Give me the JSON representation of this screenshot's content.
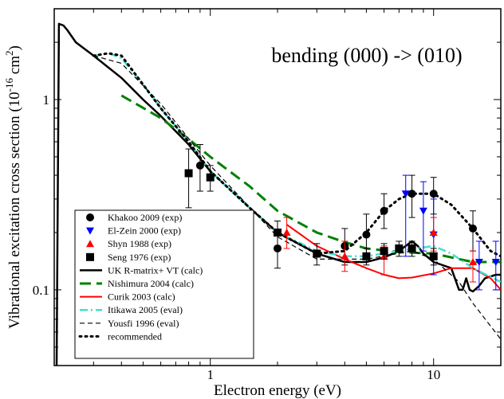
{
  "chart_data": {
    "type": "scatter",
    "title": "bending (000) -> (010)",
    "xlabel": "Electron energy (eV)",
    "ylabel": "Vibrational excitation cross section (10",
    "ylabel_exp": "-16",
    "ylabel_tail": " cm",
    "ylabel_sq": "2",
    "ylabel_end": ")",
    "xscale": "log",
    "yscale": "log",
    "xlim": [
      0.2,
      20
    ],
    "ylim": [
      0.04,
      3
    ],
    "x_ticks": [
      {
        "value": 1,
        "label": "1"
      },
      {
        "value": 10,
        "label": "10"
      }
    ],
    "y_ticks": [
      {
        "value": 0.1,
        "label": "0.1"
      },
      {
        "value": 1,
        "label": "1"
      }
    ],
    "legend_position": "bottom-left",
    "series": [
      {
        "name": "Khakoo 2009 (exp)",
        "kind": "points",
        "marker": "circle",
        "color": "#000000",
        "points": [
          [
            0.9,
            0.45,
            0.58,
            0.33
          ],
          [
            2.0,
            0.165,
            0.2,
            0.13
          ],
          [
            4.0,
            0.17,
            0.21,
            0.135
          ],
          [
            5.0,
            0.195,
            0.25,
            0.15
          ],
          [
            6.0,
            0.26,
            0.32,
            0.21
          ],
          [
            8.0,
            0.32,
            0.4,
            0.24
          ],
          [
            10.0,
            0.32,
            0.39,
            0.25
          ],
          [
            15.0,
            0.21,
            0.26,
            0.16
          ]
        ]
      },
      {
        "name": "El-Zein 2000 (exp)",
        "kind": "points",
        "marker": "triangle-down",
        "color": "#0000ff",
        "points": [
          [
            7.5,
            0.32,
            0.4,
            0.15
          ],
          [
            9.0,
            0.26,
            0.37,
            0.16
          ],
          [
            10.0,
            0.195,
            0.3,
            0.12
          ],
          [
            16.0,
            0.14,
            0.18,
            0.1
          ],
          [
            19.0,
            0.14,
            0.18,
            0.1
          ]
        ]
      },
      {
        "name": "Shyn 1988 (exp)",
        "kind": "points",
        "marker": "triangle-up",
        "color": "#ff0000",
        "points": [
          [
            2.2,
            0.2,
            0.24,
            0.165
          ],
          [
            4.0,
            0.15,
            0.18,
            0.125
          ],
          [
            6.0,
            0.15,
            0.17,
            0.12
          ],
          [
            10.0,
            0.2,
            0.24,
            0.16
          ],
          [
            15.0,
            0.14,
            0.16,
            0.11
          ]
        ]
      },
      {
        "name": "Seng 1976 (exp)",
        "kind": "points",
        "marker": "square",
        "color": "#000000",
        "points": [
          [
            0.8,
            0.41,
            0.55,
            0.27
          ],
          [
            1.0,
            0.39,
            0.45,
            0.33
          ],
          [
            2.0,
            0.2,
            0.23,
            0.17
          ],
          [
            3.0,
            0.155,
            0.175,
            0.135
          ],
          [
            5.0,
            0.15,
            0.165,
            0.135
          ],
          [
            6.0,
            0.16,
            0.175,
            0.145
          ],
          [
            7.0,
            0.165,
            0.18,
            0.15
          ],
          [
            8.0,
            0.165,
            0.18,
            0.15
          ],
          [
            10.0,
            0.15,
            0.165,
            0.135
          ]
        ]
      },
      {
        "name": "UK R-matrix+ VT (calc)",
        "kind": "line",
        "style": "solid",
        "color": "#000000",
        "width": 2.5,
        "points": [
          [
            0.205,
            0.04
          ],
          [
            0.21,
            2.5
          ],
          [
            0.22,
            2.45
          ],
          [
            0.23,
            2.3
          ],
          [
            0.25,
            2.0
          ],
          [
            0.3,
            1.7
          ],
          [
            0.4,
            1.3
          ],
          [
            0.5,
            1.0
          ],
          [
            0.6,
            0.82
          ],
          [
            0.8,
            0.58
          ],
          [
            1.0,
            0.42
          ],
          [
            1.5,
            0.27
          ],
          [
            2.0,
            0.2
          ],
          [
            3.0,
            0.155
          ],
          [
            4.0,
            0.14
          ],
          [
            5.0,
            0.14
          ],
          [
            6.0,
            0.148
          ],
          [
            7.0,
            0.16
          ],
          [
            8.0,
            0.18
          ],
          [
            8.5,
            0.17
          ],
          [
            9.0,
            0.155
          ],
          [
            10.0,
            0.14
          ],
          [
            12.0,
            0.13
          ],
          [
            13.0,
            0.1
          ],
          [
            13.5,
            0.1
          ],
          [
            14.0,
            0.115
          ],
          [
            14.5,
            0.1
          ],
          [
            15.0,
            0.098
          ],
          [
            16.0,
            0.105
          ],
          [
            17.0,
            0.115
          ],
          [
            19.0,
            0.12
          ],
          [
            20.0,
            0.12
          ]
        ]
      },
      {
        "name": "Nishimura 2004 (calc)",
        "kind": "line",
        "style": "longdash",
        "color": "#008000",
        "width": 3,
        "points": [
          [
            0.4,
            1.05
          ],
          [
            0.6,
            0.8
          ],
          [
            0.8,
            0.62
          ],
          [
            1.0,
            0.5
          ],
          [
            1.5,
            0.35
          ],
          [
            2.0,
            0.26
          ],
          [
            3.0,
            0.2
          ],
          [
            4.0,
            0.178
          ],
          [
            5.0,
            0.165
          ],
          [
            7.0,
            0.158
          ],
          [
            10.0,
            0.155
          ],
          [
            15.0,
            0.14
          ],
          [
            20.0,
            0.14
          ]
        ]
      },
      {
        "name": "Curik 2003 (calc)",
        "kind": "line",
        "style": "solid",
        "color": "#ff0000",
        "width": 2,
        "points": [
          [
            2.2,
            0.22
          ],
          [
            3.0,
            0.17
          ],
          [
            4.0,
            0.145
          ],
          [
            5.0,
            0.13
          ],
          [
            6.0,
            0.12
          ],
          [
            7.0,
            0.115
          ],
          [
            8.0,
            0.116
          ],
          [
            10.0,
            0.122
          ],
          [
            12.0,
            0.13
          ],
          [
            15.0,
            0.13
          ],
          [
            18.0,
            0.115
          ],
          [
            20.0,
            0.1
          ]
        ]
      },
      {
        "name": "Itikawa 2005 (eval)",
        "kind": "line",
        "style": "dashdot",
        "color": "#40e0d0",
        "width": 2.5,
        "points": [
          [
            0.3,
            1.7
          ],
          [
            0.35,
            1.75
          ],
          [
            0.4,
            1.65
          ],
          [
            0.5,
            1.2
          ],
          [
            0.6,
            0.9
          ],
          [
            0.8,
            0.6
          ],
          [
            1.0,
            0.42
          ],
          [
            1.5,
            0.27
          ],
          [
            2.0,
            0.2
          ],
          [
            3.0,
            0.16
          ],
          [
            4.0,
            0.15
          ],
          [
            5.0,
            0.15
          ],
          [
            7.0,
            0.16
          ],
          [
            10.0,
            0.17
          ],
          [
            12.0,
            0.155
          ],
          [
            15.0,
            0.13
          ],
          [
            20.0,
            0.11
          ]
        ]
      },
      {
        "name": "Yousfi 1996 (eval)",
        "kind": "line",
        "style": "dash",
        "color": "#000000",
        "width": 1.2,
        "points": [
          [
            0.3,
            1.7
          ],
          [
            0.4,
            1.55
          ],
          [
            0.6,
            0.95
          ],
          [
            1.0,
            0.45
          ],
          [
            2.0,
            0.19
          ],
          [
            3.0,
            0.145
          ],
          [
            5.0,
            0.145
          ],
          [
            8.0,
            0.16
          ],
          [
            10.0,
            0.145
          ],
          [
            13.0,
            0.11
          ],
          [
            15.0,
            0.085
          ],
          [
            20.0,
            0.055
          ]
        ]
      },
      {
        "name": "recommended",
        "kind": "line",
        "style": "dot",
        "color": "#000000",
        "width": 3,
        "points": [
          [
            0.3,
            1.7
          ],
          [
            0.35,
            1.75
          ],
          [
            0.4,
            1.7
          ],
          [
            0.5,
            1.2
          ],
          [
            0.6,
            0.9
          ],
          [
            0.8,
            0.6
          ],
          [
            1.0,
            0.42
          ],
          [
            1.5,
            0.27
          ],
          [
            2.0,
            0.2
          ],
          [
            3.0,
            0.155
          ],
          [
            4.0,
            0.16
          ],
          [
            5.0,
            0.2
          ],
          [
            6.0,
            0.26
          ],
          [
            7.0,
            0.3
          ],
          [
            8.0,
            0.32
          ],
          [
            10.0,
            0.32
          ],
          [
            12.0,
            0.28
          ],
          [
            15.0,
            0.21
          ],
          [
            18.0,
            0.16
          ],
          [
            20.0,
            0.15
          ]
        ]
      }
    ]
  }
}
